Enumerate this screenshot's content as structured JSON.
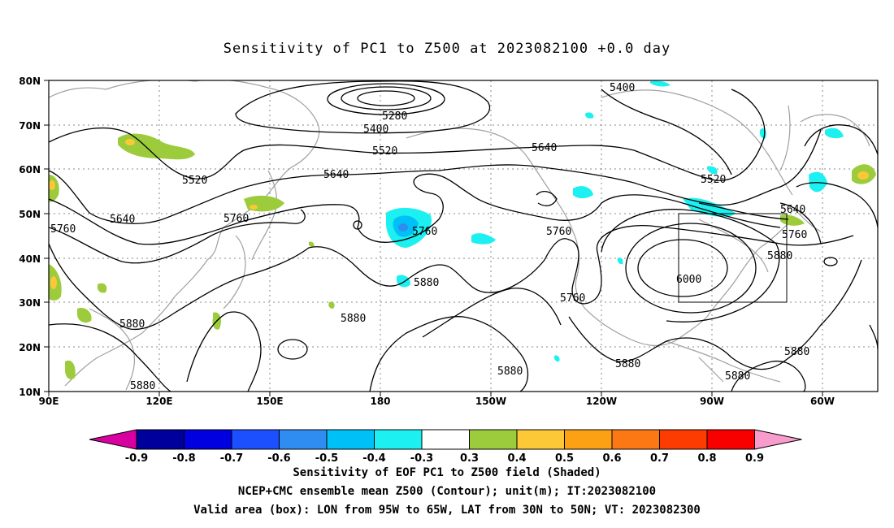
{
  "title": "Sensitivity of PC1 to Z500 at 2023082100 +0.0 day",
  "lat_labels": [
    "80N",
    "70N",
    "60N",
    "50N",
    "40N",
    "30N",
    "20N",
    "10N"
  ],
  "lon_labels": [
    "90E",
    "120E",
    "150E",
    "180",
    "150W",
    "120W",
    "90W",
    "60W"
  ],
  "contour_labels": [
    {
      "text": "5280"
    },
    {
      "text": "5400"
    },
    {
      "text": "5400"
    },
    {
      "text": "5520"
    },
    {
      "text": "5520"
    },
    {
      "text": "5520"
    },
    {
      "text": "5640"
    },
    {
      "text": "5640"
    },
    {
      "text": "5640"
    },
    {
      "text": "5640"
    },
    {
      "text": "5760"
    },
    {
      "text": "5760"
    },
    {
      "text": "5760"
    },
    {
      "text": "5760"
    },
    {
      "text": "5760"
    },
    {
      "text": "5760"
    },
    {
      "text": "5880"
    },
    {
      "text": "5880"
    },
    {
      "text": "5880"
    },
    {
      "text": "5880"
    },
    {
      "text": "5880"
    },
    {
      "text": "5880"
    },
    {
      "text": "5880"
    },
    {
      "text": "5880"
    },
    {
      "text": "5880"
    },
    {
      "text": "6000"
    }
  ],
  "colorbar": {
    "labels": [
      "-0.9",
      "-0.8",
      "-0.7",
      "-0.6",
      "-0.5",
      "-0.4",
      "-0.3",
      "0.3",
      "0.4",
      "0.5",
      "0.6",
      "0.7",
      "0.8",
      "0.9"
    ],
    "colors": [
      "#d800a0",
      "#00009c",
      "#0000e0",
      "#1c50ff",
      "#2f8cf0",
      "#00c0f8",
      "#1cf0f0",
      "#ffffff",
      "#9ccc3c",
      "#fcc838",
      "#fca014",
      "#fc7814",
      "#fc3c00",
      "#f80000",
      "#f89ccc"
    ]
  },
  "valid_box": {
    "lon_min": "95W",
    "lon_max": "65W",
    "lat_min": "30N",
    "lat_max": "50N"
  },
  "captions": [
    "Sensitivity of EOF PC1 to Z500 field (Shaded)",
    "NCEP+CMC ensemble mean Z500 (Contour); unit(m); IT:2023082100",
    "Valid area (box): LON from 95W to 65W, LAT from 30N to 50N; VT: 2023082300"
  ]
}
